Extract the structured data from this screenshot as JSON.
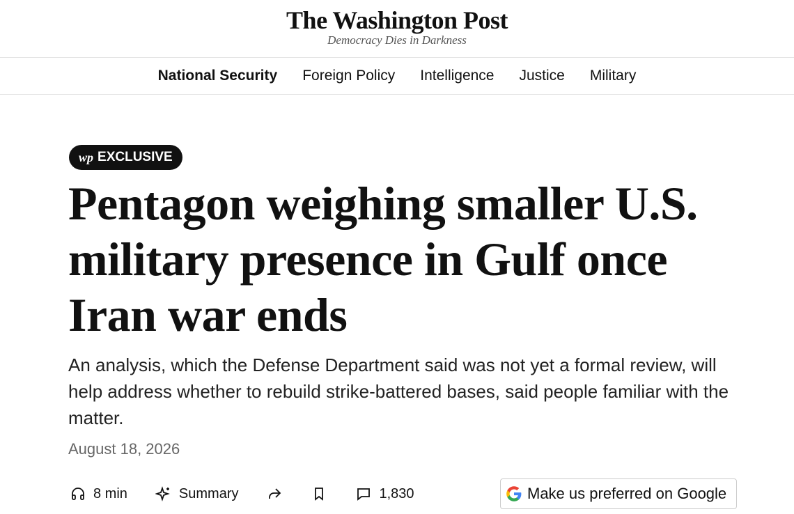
{
  "header": {
    "title": "The Washington Post",
    "tagline": "Democracy Dies in Darkness"
  },
  "nav": {
    "items": [
      "National Security",
      "Foreign Policy",
      "Intelligence",
      "Justice",
      "Military"
    ]
  },
  "article": {
    "badge": {
      "logo": "wp",
      "label": "EXCLUSIVE"
    },
    "headline": "Pentagon weighing smaller U.S. military presence in Gulf once Iran war ends",
    "dek": "An analysis, which the Defense Department said was not yet a formal review, will help address whether to rebuild strike-battered bases, said people familiar with the matter.",
    "date": "August 18, 2026",
    "actions": {
      "listen": "8 min",
      "summary": "Summary",
      "comments": "1,830",
      "google": "Make us preferred on Google"
    }
  }
}
